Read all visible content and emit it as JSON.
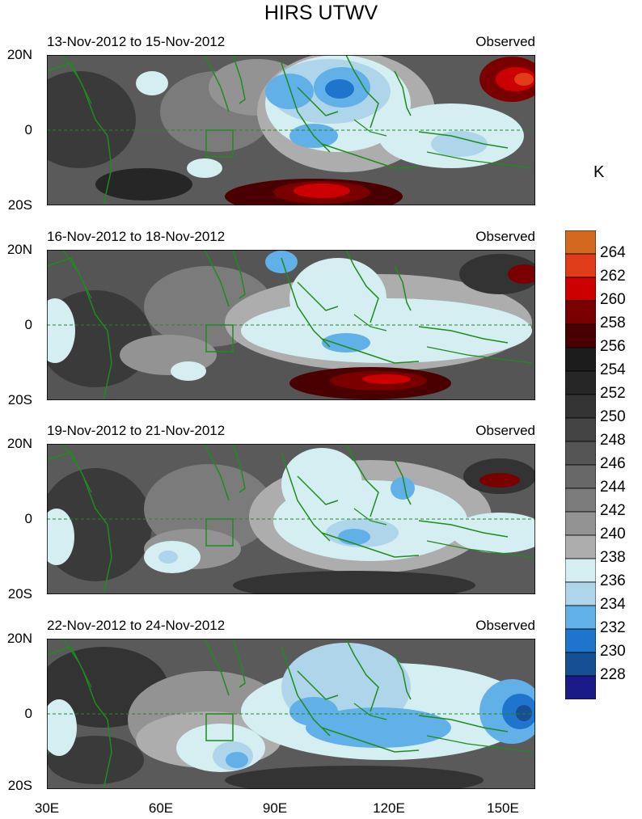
{
  "title": "HIRS UTWV",
  "unit": "K",
  "lat_labels": [
    "20N",
    "0",
    "20S"
  ],
  "lon_labels": [
    "30E",
    "60E",
    "90E",
    "120E",
    "150E"
  ],
  "panels": [
    {
      "date": "13-Nov-2012 to 15-Nov-2012",
      "label": "Observed"
    },
    {
      "date": "16-Nov-2012 to 18-Nov-2012",
      "label": "Observed"
    },
    {
      "date": "19-Nov-2012 to 21-Nov-2012",
      "label": "Observed"
    },
    {
      "date": "22-Nov-2012 to 24-Nov-2012",
      "label": "Observed"
    }
  ],
  "colorbar": {
    "levels": [
      "264",
      "262",
      "260",
      "258",
      "256",
      "254",
      "252",
      "250",
      "248",
      "246",
      "244",
      "242",
      "240",
      "238",
      "236",
      "234",
      "232",
      "230",
      "228"
    ],
    "colors": [
      "#d2691e",
      "#e03c1a",
      "#cc0000",
      "#7a0000",
      "#4a0000",
      "#1c1c1c",
      "#262626",
      "#333333",
      "#444444",
      "#555555",
      "#686868",
      "#7b7b7b",
      "#939393",
      "#adadad",
      "#d4eef2",
      "#afd5ea",
      "#62b0e8",
      "#1f74cc",
      "#174f94",
      "#1a1a88"
    ],
    "colors_note": "top-to-bottom swatches"
  },
  "colors": {
    "coast": "#1e8c1e",
    "background_gray": "#5a5a5a"
  }
}
